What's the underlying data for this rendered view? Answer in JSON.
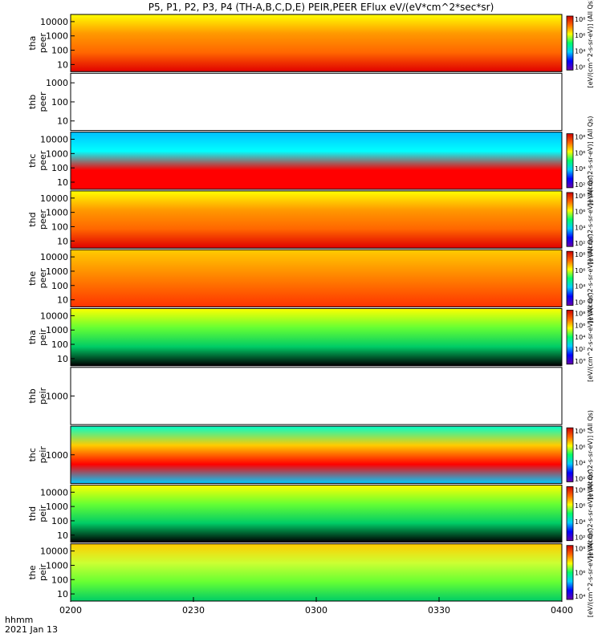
{
  "chart_data": {
    "type": "heatmap",
    "title": "P5, P1, P2, P3, P4 (TH-A,B,C,D,E) PEIR,PEER EFlux eV/(eV*cm^2*sec*sr)",
    "x_time_labels": [
      "0200",
      "0230",
      "0300",
      "0330",
      "0400"
    ],
    "x_range": [
      "0200",
      "0400"
    ],
    "date_labels": [
      "hhmm",
      "2021 Jan 13"
    ],
    "colorscale": "rainbow (purple-blue-cyan-green-yellow-red)",
    "panels": [
      {
        "label_top": "tha",
        "label_bottom": "peer",
        "y_ticks": [
          "10",
          "100",
          "1000",
          "10000"
        ],
        "cbar_ticks": [
          "10²",
          "10⁴",
          "10⁶",
          "10⁸"
        ],
        "cbar_label": "[eV/(cm^2-s-sr-eV)] (All Qs)",
        "colors": [
          "#ffff00",
          "#ff9900",
          "#ff6600",
          "#e00000"
        ]
      },
      {
        "label_top": "thb",
        "label_bottom": "peer",
        "y_ticks": [
          "10",
          "100",
          "1000"
        ],
        "cbar_ticks": [],
        "cbar_label": "",
        "colors": [
          "#ffffff"
        ]
      },
      {
        "label_top": "thc",
        "label_bottom": "peer",
        "y_ticks": [
          "10",
          "100",
          "1000",
          "10000"
        ],
        "cbar_ticks": [
          "10²",
          "10⁴",
          "10⁶",
          "10⁸"
        ],
        "cbar_label": "[eV/(cm^2-s-sr-eV)] (All Qs)",
        "colors": [
          "#00c0ff",
          "#00ffff",
          "#ff0000",
          "#ff0000"
        ]
      },
      {
        "label_top": "thd",
        "label_bottom": "peer",
        "y_ticks": [
          "10",
          "100",
          "1000",
          "10000"
        ],
        "cbar_ticks": [
          "10²",
          "10⁴",
          "10⁶",
          "10⁸"
        ],
        "cbar_label": "[eV/(cm^2-s-sr-eV)] (All Qs)",
        "colors": [
          "#ffff00",
          "#ff9900",
          "#ff6600",
          "#e00000"
        ]
      },
      {
        "label_top": "the",
        "label_bottom": "peer",
        "y_ticks": [
          "10",
          "100",
          "1000",
          "10000"
        ],
        "cbar_ticks": [
          "10²",
          "10⁴",
          "10⁶",
          "10⁸"
        ],
        "cbar_label": "[eV/(cm^2-s-sr-eV)] (All Qs)",
        "colors": [
          "#ffcc00",
          "#ff9900",
          "#ff6600",
          "#ff3300"
        ]
      },
      {
        "label_top": "tha",
        "label_bottom": "peir",
        "y_ticks": [
          "10",
          "100",
          "1000",
          "10000"
        ],
        "cbar_ticks": [
          "10°",
          "10²",
          "10⁴",
          "10⁶",
          "10⁸"
        ],
        "cbar_label": "[eV/(cm^2-s-sr-eV)] (All Qs)",
        "colors": [
          "#ffff00",
          "#66ff33",
          "#00cc66",
          "#000000"
        ]
      },
      {
        "label_top": "thb",
        "label_bottom": "peir",
        "y_ticks": [
          "1000"
        ],
        "cbar_ticks": [],
        "cbar_label": "",
        "colors": [
          "#ffffff"
        ]
      },
      {
        "label_top": "thc",
        "label_bottom": "peir",
        "y_ticks": [
          "1000"
        ],
        "cbar_ticks": [
          "10²",
          "10⁴",
          "10⁶",
          "10⁸"
        ],
        "cbar_label": "[eV/(cm^2-s-sr-eV)] (All Qs)",
        "colors": [
          "#00ffcc",
          "#ffcc00",
          "#ff0000",
          "#00ccff"
        ]
      },
      {
        "label_top": "thd",
        "label_bottom": "peir",
        "y_ticks": [
          "10",
          "100",
          "1000",
          "10000"
        ],
        "cbar_ticks": [
          "10²",
          "10⁴",
          "10⁶",
          "10⁸"
        ],
        "cbar_label": "[eV/(cm^2-s-sr-eV)] (All Qs)",
        "colors": [
          "#ffff00",
          "#66ff33",
          "#00cc66",
          "#000000"
        ]
      },
      {
        "label_top": "the",
        "label_bottom": "peir",
        "y_ticks": [
          "10",
          "100",
          "1000",
          "10000"
        ],
        "cbar_ticks": [
          "10⁴",
          "10⁶",
          "10⁸"
        ],
        "cbar_label": "[eV/(cm^2-s-sr-eV)] (All Qs)",
        "colors": [
          "#ffcc00",
          "#ccff33",
          "#66ff33",
          "#00cc66"
        ]
      }
    ]
  }
}
